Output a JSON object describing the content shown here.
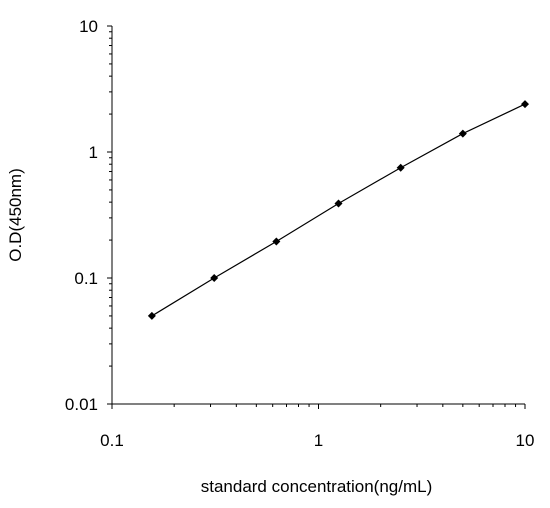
{
  "chart_data": {
    "type": "scatter",
    "xlabel": "standard concentration(ng/mL)",
    "ylabel": "O.D(450nm)",
    "x_scale": "log",
    "y_scale": "log",
    "xlim": [
      0.1,
      10
    ],
    "ylim": [
      0.01,
      10
    ],
    "x_ticks": [
      "0.1",
      "1",
      "10"
    ],
    "y_ticks": [
      "0.01",
      "0.1",
      "1",
      "10"
    ],
    "grid": false,
    "series": [
      {
        "x": [
          0.156,
          0.3125,
          0.625,
          1.25,
          2.5,
          5,
          10
        ],
        "y": [
          0.05,
          0.1,
          0.195,
          0.39,
          0.75,
          1.4,
          2.4
        ]
      }
    ],
    "colors": {
      "line": "#000000",
      "marker": "#000000",
      "axis": "#000000"
    }
  }
}
